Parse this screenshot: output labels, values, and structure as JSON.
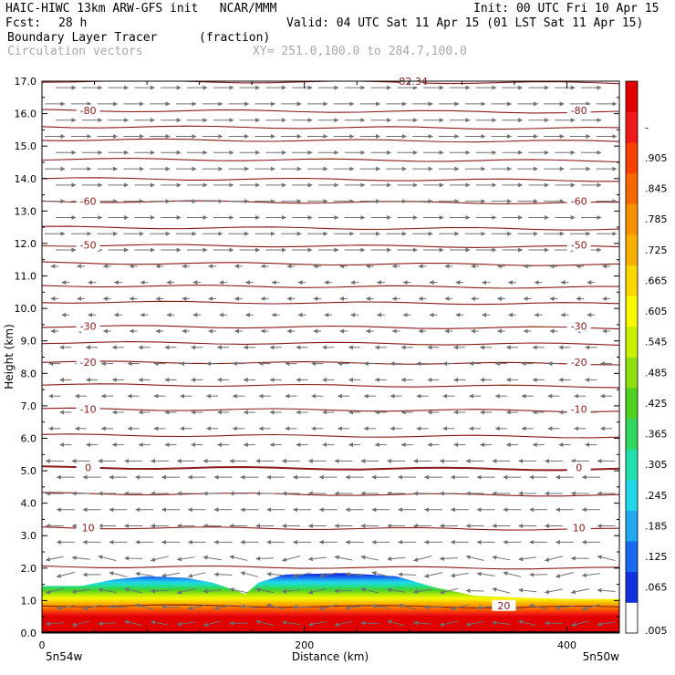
{
  "header": {
    "title": "HAIC-HIWC 13km ARW-GFS init   NCAR/MMM",
    "init": "Init: 00 UTC Fri 10 Apr 15",
    "fcst_label": "Fcst:",
    "fcst_value": "28 h",
    "valid": "Valid: 04 UTC Sat 11 Apr 15 (01 LST Sat 11 Apr 15)",
    "field_name": "Boundary Layer Tracer",
    "field_units": "(fraction)",
    "vectors_label": "Circulation vectors",
    "xy_label": "XY= 251.0,100.0 to 284.7,100.0"
  },
  "chart_data": {
    "type": "heatmap",
    "title": "Boundary Layer Tracer",
    "xlabel": "Distance (km)",
    "ylabel": "Height (km)",
    "xlim": [
      0,
      440
    ],
    "ylim": [
      0,
      17
    ],
    "x_ticks": [
      0,
      200,
      400
    ],
    "y_ticks": [
      "0.0",
      "1.0",
      "2.0",
      "3.0",
      "4.0",
      "5.0",
      "6.0",
      "7.0",
      "8.0",
      "9.0",
      "10.0",
      "11.0",
      "12.0",
      "13.0",
      "14.0",
      "15.0",
      "16.0",
      "17.0"
    ],
    "x_end_labels": {
      "left": "5n54w",
      "right": "5n50w"
    },
    "colorbar": {
      "labels": [
        ".005",
        ".065",
        ".125",
        ".185",
        ".245",
        ".305",
        ".365",
        ".425",
        ".485",
        ".545",
        ".605",
        ".665",
        ".725",
        ".785",
        ".845",
        ".905",
        "-"
      ],
      "colors": [
        "#ffffff",
        "#1030e0",
        "#1868f0",
        "#20a8f0",
        "#20d8e8",
        "#20e0b0",
        "#30d860",
        "#50d020",
        "#90e010",
        "#c8f000",
        "#f8f800",
        "#f8d800",
        "#f8b000",
        "#f89000",
        "#f86800",
        "#f84000",
        "#f01818",
        "#e00000"
      ]
    },
    "tracer_top_km": [
      [
        0,
        1.45
      ],
      [
        30,
        1.45
      ],
      [
        55,
        1.65
      ],
      [
        80,
        1.75
      ],
      [
        110,
        1.7
      ],
      [
        130,
        1.55
      ],
      [
        145,
        1.35
      ],
      [
        155,
        1.2
      ],
      [
        165,
        1.55
      ],
      [
        185,
        1.8
      ],
      [
        230,
        1.85
      ],
      [
        270,
        1.75
      ],
      [
        300,
        1.4
      ],
      [
        330,
        1.15
      ],
      [
        360,
        1.1
      ],
      [
        400,
        1.05
      ],
      [
        440,
        1.05
      ]
    ],
    "temperature_contours": [
      {
        "label": "-80",
        "height_km": 16.1
      },
      {
        "label": "-60",
        "height_km": 13.3
      },
      {
        "label": "-50",
        "height_km": 11.95
      },
      {
        "label": "-30",
        "height_km": 9.45
      },
      {
        "label": "-20",
        "height_km": 8.35
      },
      {
        "label": "-10",
        "height_km": 6.9
      },
      {
        "label": "0",
        "height_km": 5.1
      },
      {
        "label": "10",
        "height_km": 3.25
      },
      {
        "label": "20",
        "height_km": 0.85
      },
      {
        "label": "-82.34",
        "height_km": 17.0
      }
    ],
    "unlabeled_contours_km": [
      15.6,
      15.2,
      14.6,
      14.0,
      12.5,
      11.4,
      10.7,
      10.2,
      8.95,
      7.65,
      6.1,
      4.3,
      2.05
    ],
    "wind_regimes": [
      {
        "from_km": 11.5,
        "to_km": 17.0,
        "direction": "east",
        "strength": 1.0
      },
      {
        "from_km": 9.0,
        "to_km": 11.5,
        "direction": "west",
        "strength": 0.2
      },
      {
        "from_km": 5.5,
        "to_km": 9.0,
        "direction": "west",
        "strength": 0.45
      },
      {
        "from_km": 0.0,
        "to_km": 5.5,
        "direction": "west",
        "strength": 0.85
      }
    ],
    "grid": false,
    "legend": "right colorbar"
  }
}
